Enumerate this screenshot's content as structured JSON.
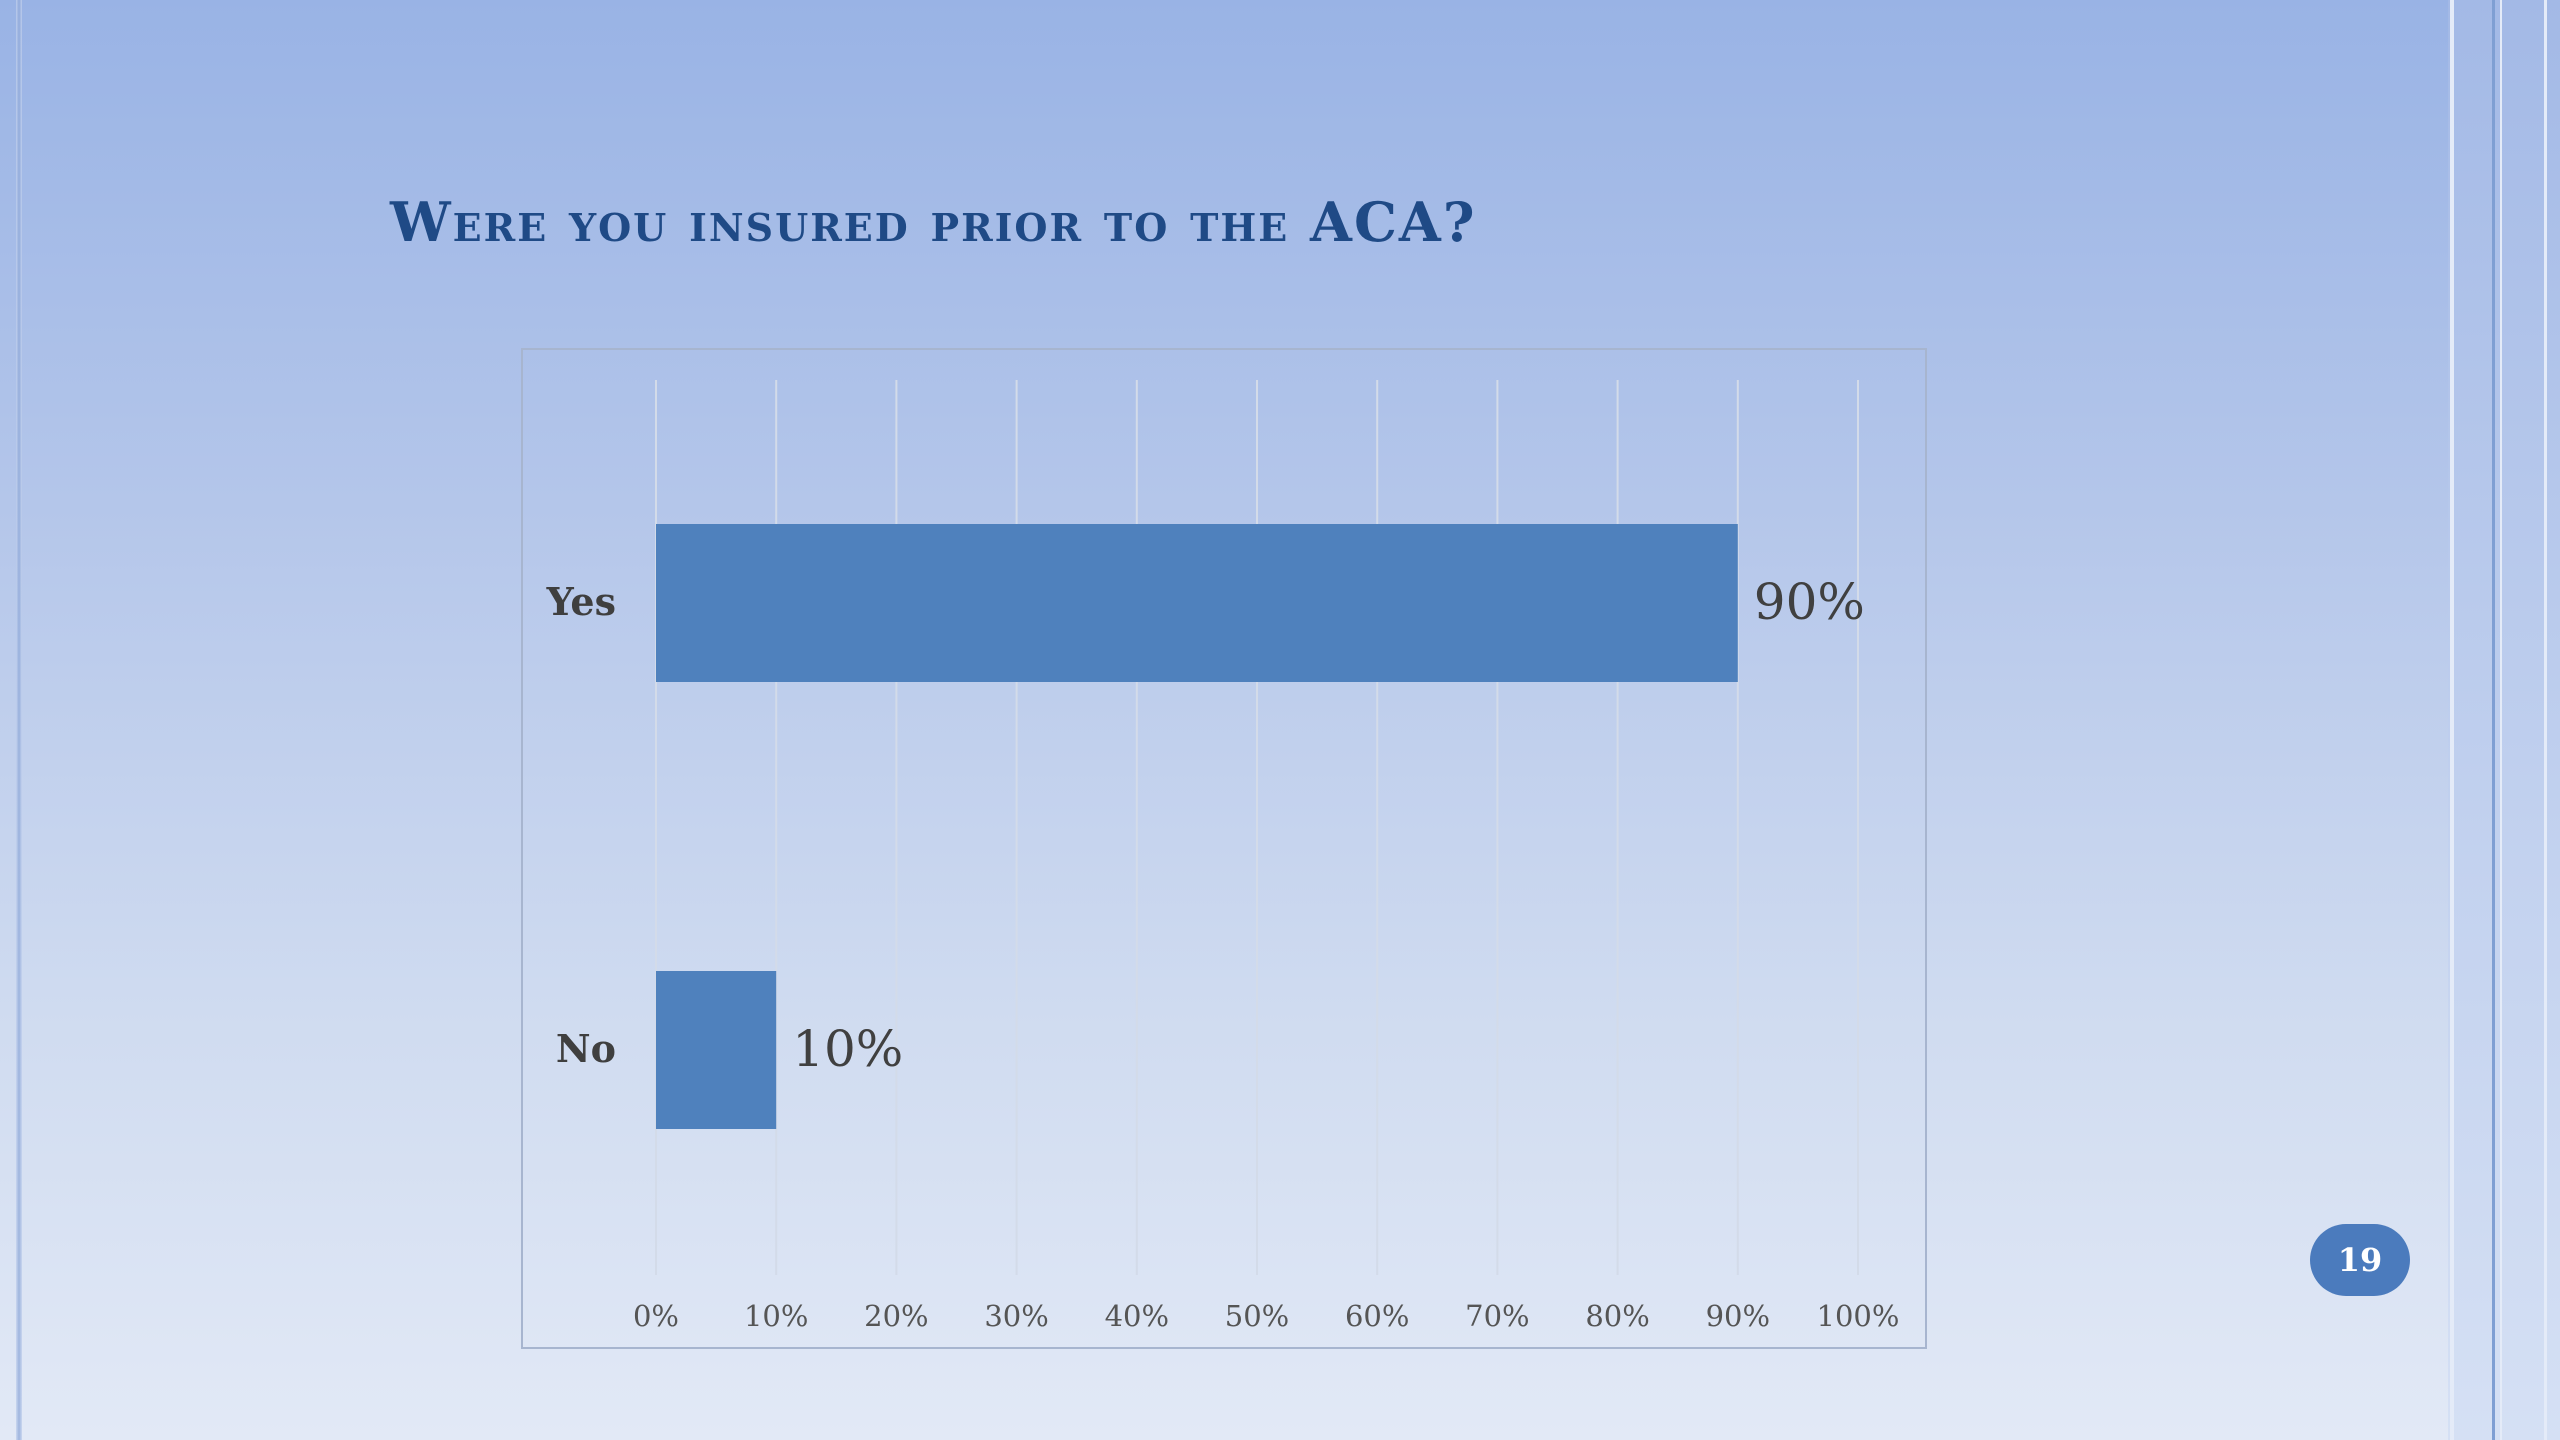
{
  "slide": {
    "title": "Were you insured prior to the ACA?",
    "page_number": "19"
  },
  "colors": {
    "bar": "#4f81bd",
    "title": "#1f4a86",
    "badge": "#4b7bbd"
  },
  "chart_data": {
    "type": "bar",
    "orientation": "horizontal",
    "categories": [
      "Yes",
      "No"
    ],
    "values": [
      90,
      10
    ],
    "data_labels": [
      "90%",
      "10%"
    ],
    "xlim": [
      0,
      100
    ],
    "x_ticks": [
      "0%",
      "10%",
      "20%",
      "30%",
      "40%",
      "50%",
      "60%",
      "70%",
      "80%",
      "90%",
      "100%"
    ],
    "grid": "vertical",
    "legend": "none"
  }
}
